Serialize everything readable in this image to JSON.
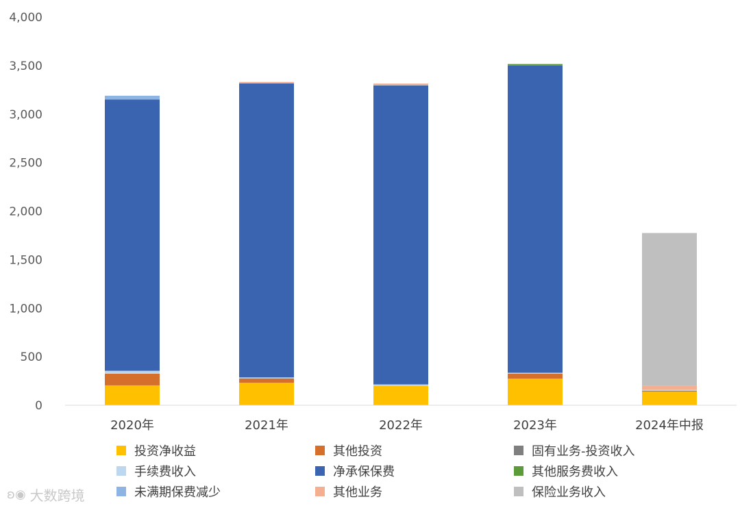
{
  "chart_data": {
    "type": "bar",
    "stacked": true,
    "categories": [
      "2020年",
      "2021年",
      "2022年",
      "2023年",
      "2024年中报"
    ],
    "ylim": [
      0,
      4000
    ],
    "yticks": [
      0,
      500,
      1000,
      1500,
      2000,
      2500,
      3000,
      3500,
      4000
    ],
    "ytick_labels": [
      "0",
      "500",
      "1,000",
      "1,500",
      "2,000",
      "2,500",
      "3,000",
      "3,500",
      "4,000"
    ],
    "grid": false,
    "legend_position": "bottom",
    "series": [
      {
        "name": "投资净收益",
        "color": "#FFC000",
        "values": [
          205,
          232,
          200,
          275,
          140
        ]
      },
      {
        "name": "其他投资",
        "color": "#D4702B",
        "values": [
          120,
          45,
          0,
          50,
          10
        ]
      },
      {
        "name": "固有业务-投资收入",
        "color": "#7F7F7F",
        "values": [
          0,
          0,
          0,
          0,
          0
        ]
      },
      {
        "name": "手续费收入",
        "color": "#BDD7EE",
        "values": [
          30,
          10,
          15,
          10,
          10
        ]
      },
      {
        "name": "净承保保费",
        "color": "#3A64B0",
        "values": [
          2795,
          3030,
          3080,
          3165,
          0
        ]
      },
      {
        "name": "其他服务费收入",
        "color": "#5B9B3A",
        "values": [
          0,
          0,
          0,
          15,
          0
        ]
      },
      {
        "name": "未满期保费减少",
        "color": "#8EB4E3",
        "values": [
          40,
          5,
          5,
          0,
          0
        ]
      },
      {
        "name": "其他业务",
        "color": "#F4AE90",
        "values": [
          0,
          10,
          15,
          5,
          40
        ]
      },
      {
        "name": "保险业务收入",
        "color": "#BFBFBF",
        "values": [
          0,
          0,
          0,
          0,
          1575
        ]
      }
    ]
  },
  "watermark": {
    "icon": "duck-logo-icon",
    "text": "大数跨境"
  }
}
